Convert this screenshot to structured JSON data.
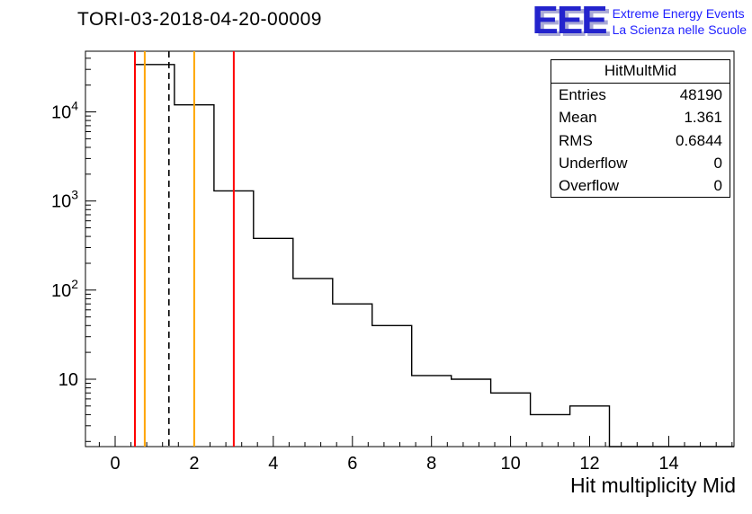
{
  "header": {
    "title": "TORI-03-2018-04-20-00009"
  },
  "logo": {
    "acronym": "EEE",
    "line1": "Extreme Energy Events",
    "line2": "La Scienza nelle Scuole",
    "text_color": "#2121ff",
    "acronym_color": "#2323cd"
  },
  "stats": {
    "header": "HitMultMid",
    "rows": [
      {
        "label": "Entries",
        "value": "48190"
      },
      {
        "label": "Mean",
        "value": "1.361"
      },
      {
        "label": "RMS",
        "value": "0.6844"
      },
      {
        "label": "Underflow",
        "value": "0"
      },
      {
        "label": "Overflow",
        "value": "0"
      }
    ]
  },
  "chart_data": {
    "type": "bar",
    "subtype": "step-histogram",
    "title": "TORI-03-2018-04-20-00009",
    "xlabel": "Hit multiplicity Mid",
    "ylabel": "",
    "y_scale": "log",
    "grid": false,
    "x_range": [
      -0.75,
      15.65
    ],
    "y_range": [
      1.75,
      48000
    ],
    "bin_width": 1,
    "bin_centers": [
      1,
      2,
      3,
      4,
      5,
      6,
      7,
      8,
      9,
      10,
      11,
      12
    ],
    "counts": [
      34000,
      12000,
      1300,
      380,
      135,
      70,
      40,
      11,
      10,
      7,
      4,
      5
    ],
    "x_tick_values": [
      0,
      2,
      4,
      6,
      8,
      10,
      12,
      14
    ],
    "x_tick_labels": [
      "0",
      "2",
      "4",
      "6",
      "8",
      "10",
      "12",
      "14"
    ],
    "x_minor_step": 0.4,
    "y_decade_labels": [
      10,
      100,
      1000,
      10000
    ],
    "line_color": "#000000",
    "vlines": [
      {
        "x": 0.5,
        "color": "#ff0000",
        "style": "solid"
      },
      {
        "x": 0.75,
        "color": "#ffa500",
        "style": "solid"
      },
      {
        "x": 1.361,
        "color": "#000000",
        "style": "dashed"
      },
      {
        "x": 2,
        "color": "#ffa500",
        "style": "solid"
      },
      {
        "x": 3,
        "color": "#ff0000",
        "style": "solid"
      }
    ],
    "legend_position": "top-right"
  }
}
